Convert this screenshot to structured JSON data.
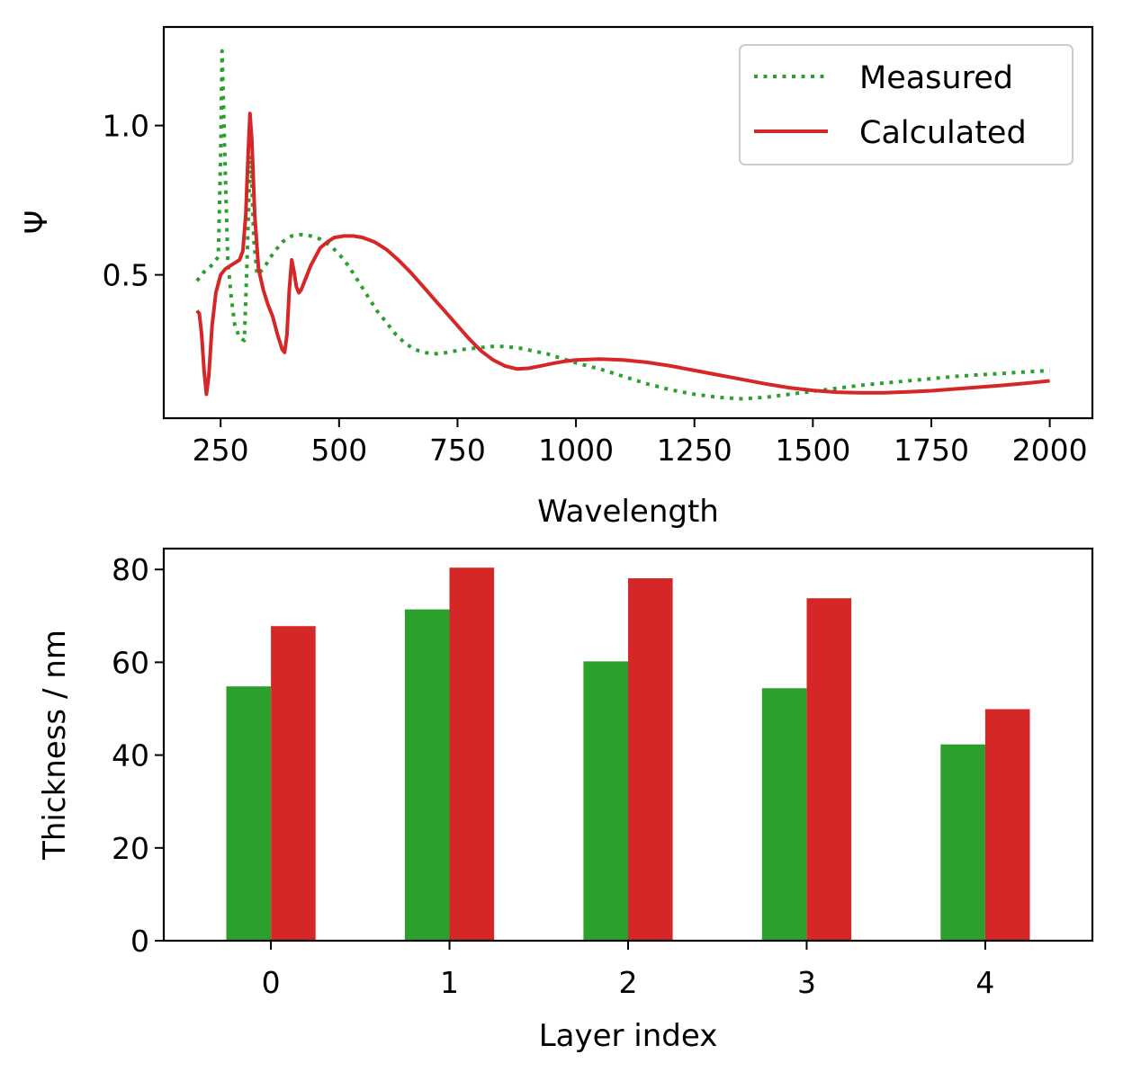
{
  "chart_data": [
    {
      "type": "line",
      "xlabel": "Wavelength",
      "ylabel": "Ψ",
      "xlim": [
        130,
        2090
      ],
      "ylim": [
        0.02,
        1.33
      ],
      "xticks": [
        250,
        500,
        750,
        1000,
        1250,
        1500,
        1750,
        2000
      ],
      "xtick_labels": [
        "250",
        "500",
        "750",
        "1000",
        "1250",
        "1500",
        "1750",
        "2000"
      ],
      "yticks": [
        0.5,
        1.0
      ],
      "ytick_labels": [
        "0.5",
        "1.0"
      ],
      "legend_position": "top-right",
      "series": [
        {
          "name": "Measured",
          "style": "dotted",
          "color": "#2ca02c",
          "points": [
            [
              200,
              0.48
            ],
            [
              215,
              0.51
            ],
            [
              230,
              0.53
            ],
            [
              245,
              0.56
            ],
            [
              250,
              0.9
            ],
            [
              253,
              1.25
            ],
            [
              258,
              0.95
            ],
            [
              265,
              0.55
            ],
            [
              272,
              0.43
            ],
            [
              280,
              0.33
            ],
            [
              290,
              0.29
            ],
            [
              300,
              0.28
            ],
            [
              305,
              0.5
            ],
            [
              310,
              0.78
            ],
            [
              314,
              0.9
            ],
            [
              320,
              0.62
            ],
            [
              327,
              0.5
            ],
            [
              340,
              0.52
            ],
            [
              360,
              0.57
            ],
            [
              380,
              0.61
            ],
            [
              400,
              0.63
            ],
            [
              420,
              0.635
            ],
            [
              440,
              0.63
            ],
            [
              460,
              0.62
            ],
            [
              480,
              0.6
            ],
            [
              500,
              0.57
            ],
            [
              520,
              0.53
            ],
            [
              540,
              0.48
            ],
            [
              560,
              0.43
            ],
            [
              580,
              0.38
            ],
            [
              600,
              0.34
            ],
            [
              620,
              0.3
            ],
            [
              640,
              0.27
            ],
            [
              660,
              0.25
            ],
            [
              680,
              0.24
            ],
            [
              700,
              0.235
            ],
            [
              730,
              0.24
            ],
            [
              760,
              0.25
            ],
            [
              790,
              0.255
            ],
            [
              820,
              0.26
            ],
            [
              850,
              0.26
            ],
            [
              880,
              0.255
            ],
            [
              910,
              0.245
            ],
            [
              940,
              0.235
            ],
            [
              970,
              0.22
            ],
            [
              1000,
              0.205
            ],
            [
              1050,
              0.185
            ],
            [
              1100,
              0.16
            ],
            [
              1150,
              0.135
            ],
            [
              1200,
              0.115
            ],
            [
              1250,
              0.1
            ],
            [
              1300,
              0.09
            ],
            [
              1350,
              0.085
            ],
            [
              1400,
              0.09
            ],
            [
              1450,
              0.1
            ],
            [
              1500,
              0.11
            ],
            [
              1550,
              0.12
            ],
            [
              1600,
              0.13
            ],
            [
              1700,
              0.145
            ],
            [
              1800,
              0.16
            ],
            [
              1900,
              0.17
            ],
            [
              2000,
              0.18
            ]
          ]
        },
        {
          "name": "Calculated",
          "style": "solid",
          "color": "#d62728",
          "points": [
            [
              200,
              0.38
            ],
            [
              205,
              0.37
            ],
            [
              210,
              0.3
            ],
            [
              215,
              0.18
            ],
            [
              220,
              0.1
            ],
            [
              225,
              0.16
            ],
            [
              232,
              0.33
            ],
            [
              240,
              0.44
            ],
            [
              250,
              0.5
            ],
            [
              260,
              0.52
            ],
            [
              270,
              0.53
            ],
            [
              280,
              0.54
            ],
            [
              290,
              0.55
            ],
            [
              297,
              0.58
            ],
            [
              303,
              0.7
            ],
            [
              308,
              0.9
            ],
            [
              312,
              1.04
            ],
            [
              316,
              0.95
            ],
            [
              322,
              0.7
            ],
            [
              330,
              0.52
            ],
            [
              340,
              0.45
            ],
            [
              350,
              0.4
            ],
            [
              360,
              0.36
            ],
            [
              370,
              0.3
            ],
            [
              380,
              0.25
            ],
            [
              385,
              0.24
            ],
            [
              390,
              0.3
            ],
            [
              395,
              0.45
            ],
            [
              400,
              0.55
            ],
            [
              405,
              0.51
            ],
            [
              410,
              0.46
            ],
            [
              415,
              0.44
            ],
            [
              420,
              0.45
            ],
            [
              430,
              0.49
            ],
            [
              440,
              0.53
            ],
            [
              450,
              0.56
            ],
            [
              460,
              0.59
            ],
            [
              475,
              0.61
            ],
            [
              490,
              0.625
            ],
            [
              510,
              0.63
            ],
            [
              530,
              0.63
            ],
            [
              550,
              0.625
            ],
            [
              575,
              0.61
            ],
            [
              600,
              0.585
            ],
            [
              625,
              0.55
            ],
            [
              650,
              0.51
            ],
            [
              675,
              0.465
            ],
            [
              700,
              0.42
            ],
            [
              725,
              0.375
            ],
            [
              750,
              0.33
            ],
            [
              775,
              0.285
            ],
            [
              800,
              0.245
            ],
            [
              825,
              0.215
            ],
            [
              850,
              0.195
            ],
            [
              875,
              0.185
            ],
            [
              900,
              0.187
            ],
            [
              925,
              0.195
            ],
            [
              950,
              0.203
            ],
            [
              975,
              0.21
            ],
            [
              1000,
              0.215
            ],
            [
              1050,
              0.218
            ],
            [
              1100,
              0.215
            ],
            [
              1150,
              0.207
            ],
            [
              1200,
              0.195
            ],
            [
              1250,
              0.18
            ],
            [
              1300,
              0.165
            ],
            [
              1350,
              0.15
            ],
            [
              1400,
              0.135
            ],
            [
              1450,
              0.122
            ],
            [
              1500,
              0.113
            ],
            [
              1550,
              0.107
            ],
            [
              1600,
              0.105
            ],
            [
              1650,
              0.105
            ],
            [
              1700,
              0.108
            ],
            [
              1750,
              0.112
            ],
            [
              1800,
              0.118
            ],
            [
              1850,
              0.124
            ],
            [
              1900,
              0.13
            ],
            [
              1950,
              0.137
            ],
            [
              2000,
              0.145
            ]
          ]
        }
      ]
    },
    {
      "type": "bar",
      "xlabel": "Layer index",
      "ylabel": "Thickness / nm",
      "categories": [
        "0",
        "1",
        "2",
        "3",
        "4"
      ],
      "ylim": [
        0,
        84.5
      ],
      "yticks": [
        0,
        20,
        40,
        60,
        80
      ],
      "ytick_labels": [
        "0",
        "20",
        "40",
        "60",
        "80"
      ],
      "series": [
        {
          "color": "#2ca02c",
          "values": [
            54.8,
            71.4,
            60.2,
            54.4,
            42.3
          ]
        },
        {
          "color": "#d62728",
          "values": [
            67.8,
            80.4,
            78.1,
            73.8,
            49.9
          ]
        }
      ]
    }
  ]
}
